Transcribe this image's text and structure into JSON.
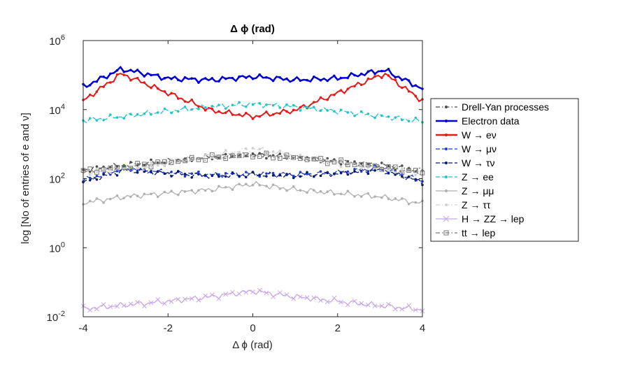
{
  "chart_data": {
    "type": "line",
    "title": "Δ ϕ (rad)",
    "xlabel": "Δ ϕ (rad)",
    "ylabel": "log [No of entries of e and ν]",
    "xlim": [
      -4,
      4
    ],
    "ylim": [
      0.01,
      1000000
    ],
    "yscale": "log",
    "x_ticks": [
      "-4",
      "-2",
      "0",
      "2",
      "4"
    ],
    "y_ticks": [
      {
        "base": "10",
        "exp": "-2"
      },
      {
        "base": "10",
        "exp": "0"
      },
      {
        "base": "10",
        "exp": "2"
      },
      {
        "base": "10",
        "exp": "4"
      },
      {
        "base": "10",
        "exp": "6"
      }
    ],
    "grid": false,
    "legend_position": "outside-right",
    "series": [
      {
        "name": "Drell-Yan processes",
        "color": "#4d4d4d",
        "style": "dashdot",
        "marker": "dot",
        "x": [
          -4,
          -3,
          -2,
          -1,
          0,
          1,
          2,
          3,
          4
        ],
        "y": [
          180,
          250,
          320,
          420,
          500,
          420,
          320,
          250,
          170
        ]
      },
      {
        "name": "Electron data",
        "color": "#0000d0",
        "style": "solid",
        "marker": "dot",
        "x": [
          -4,
          -3.1,
          -2,
          -1,
          0,
          1,
          2,
          3.1,
          4
        ],
        "y": [
          45000,
          150000,
          80000,
          72000,
          90000,
          72000,
          80000,
          140000,
          40000
        ]
      },
      {
        "name": "W → eν",
        "color": "#e61919",
        "style": "solid",
        "marker": "dot",
        "x": [
          -4,
          -3.1,
          -2,
          -1,
          0,
          1,
          2,
          3.1,
          4
        ],
        "y": [
          18000,
          110000,
          30000,
          9500,
          6300,
          9500,
          30000,
          110000,
          18000
        ]
      },
      {
        "name": "W → μν",
        "color": "#1a3ccc",
        "style": "dashed",
        "marker": "dot",
        "x": [
          -4,
          -3,
          -2,
          -1,
          0,
          1,
          2,
          3,
          4
        ],
        "y": [
          90,
          200,
          150,
          130,
          140,
          130,
          150,
          200,
          85
        ]
      },
      {
        "name": "W → τν",
        "color": "#0b1a6e",
        "style": "dashed",
        "marker": "dot",
        "x": [
          -4,
          -3,
          -2,
          -1,
          0,
          1,
          2,
          3,
          4
        ],
        "y": [
          80,
          180,
          140,
          120,
          130,
          120,
          140,
          180,
          80
        ]
      },
      {
        "name": "Z → ee",
        "color": "#22c5c5",
        "style": "dashed",
        "marker": "dot",
        "x": [
          -4,
          -3,
          -2,
          -1,
          0,
          1,
          2,
          3,
          4
        ],
        "y": [
          4800,
          6500,
          9000,
          12000,
          14500,
          12000,
          9000,
          6500,
          4500
        ]
      },
      {
        "name": "Z → μμ",
        "color": "#b0b0b0",
        "style": "solid",
        "marker": "dot",
        "x": [
          -4,
          -3,
          -2,
          -1,
          0,
          1,
          2,
          3,
          4
        ],
        "y": [
          20,
          30,
          38,
          48,
          70,
          48,
          38,
          30,
          19
        ]
      },
      {
        "name": "Z → ττ",
        "color": "#d0d0d0",
        "style": "dashdot",
        "marker": "dot",
        "x": [
          -4,
          -3,
          -2,
          -1,
          0,
          1,
          2,
          3,
          4
        ],
        "y": [
          150,
          190,
          280,
          450,
          750,
          450,
          280,
          190,
          150
        ]
      },
      {
        "name": "H → ZZ → lep",
        "color": "#c8a8e6",
        "style": "solid",
        "marker": "x",
        "x": [
          -4,
          -3,
          -2,
          -1,
          0,
          1,
          2,
          3,
          4
        ],
        "y": [
          0.017,
          0.022,
          0.028,
          0.038,
          0.055,
          0.038,
          0.028,
          0.021,
          0.016
        ]
      },
      {
        "name": "tt → lep",
        "color": "#777777",
        "style": "dashdot",
        "marker": "square",
        "x": [
          -4,
          -3,
          -2,
          -1,
          0,
          1,
          2,
          3,
          4
        ],
        "y": [
          160,
          220,
          300,
          410,
          470,
          410,
          300,
          220,
          150
        ]
      }
    ]
  }
}
